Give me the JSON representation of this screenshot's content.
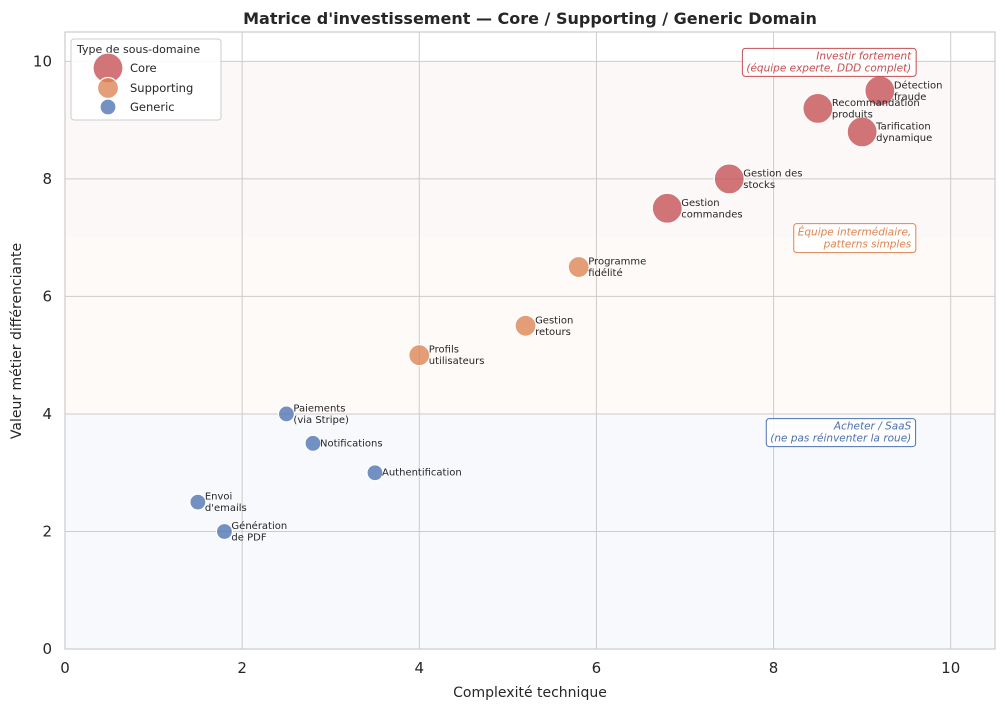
{
  "chart_data": {
    "type": "scatter",
    "title": "Matrice d'investissement — Core / Supporting / Generic Domain",
    "xlabel": "Complexité technique",
    "ylabel": "Valeur métier différenciante",
    "xlim": [
      0,
      10.5
    ],
    "ylim": [
      0,
      10.5
    ],
    "xticks": [
      0,
      2,
      4,
      6,
      8,
      10
    ],
    "yticks": [
      0,
      2,
      4,
      6,
      8,
      10
    ],
    "grid": true,
    "legend": {
      "title": "Type de sous-domaine",
      "placement": "top-left"
    },
    "bands": [
      {
        "y0": 0,
        "y1": 4,
        "color": "#4c72b0"
      },
      {
        "y0": 4,
        "y1": 7,
        "color": "#dd8452"
      },
      {
        "y0": 7,
        "y1": 10,
        "color": "#c44e52"
      }
    ],
    "series": [
      {
        "name": "Core",
        "color": "#c44e52",
        "marker_size": "large",
        "points": [
          {
            "x": 9.2,
            "y": 9.5,
            "label": "Détection\nfraude"
          },
          {
            "x": 8.5,
            "y": 9.2,
            "label": "Recommandation\nproduits"
          },
          {
            "x": 9.0,
            "y": 8.8,
            "label": "Tarification\ndynamique"
          },
          {
            "x": 7.5,
            "y": 8.0,
            "label": "Gestion des\nstocks"
          },
          {
            "x": 6.8,
            "y": 7.5,
            "label": "Gestion\ncommandes"
          }
        ]
      },
      {
        "name": "Supporting",
        "color": "#dd8452",
        "marker_size": "medium",
        "points": [
          {
            "x": 5.8,
            "y": 6.5,
            "label": "Programme\nfidélité"
          },
          {
            "x": 5.2,
            "y": 5.5,
            "label": "Gestion\nretours"
          },
          {
            "x": 4.0,
            "y": 5.0,
            "label": "Profils\nutilisateurs"
          }
        ]
      },
      {
        "name": "Generic",
        "color": "#4c72b0",
        "marker_size": "small",
        "points": [
          {
            "x": 2.5,
            "y": 4.0,
            "label": "Paiements\n(via Stripe)"
          },
          {
            "x": 2.8,
            "y": 3.5,
            "label": "Notifications"
          },
          {
            "x": 3.5,
            "y": 3.0,
            "label": "Authentification"
          },
          {
            "x": 1.5,
            "y": 2.5,
            "label": "Envoi\nd'emails"
          },
          {
            "x": 1.8,
            "y": 2.0,
            "label": "Génération\nde PDF"
          }
        ]
      }
    ],
    "annotations": [
      {
        "text": "Investir fortement\n(équipe experte, DDD complet)",
        "x": 9.6,
        "y": 10.0,
        "color": "#c44e52"
      },
      {
        "text": "Équipe intermédiaire,\npatterns simples",
        "x": 9.6,
        "y": 7.0,
        "color": "#dd8452"
      },
      {
        "text": "Acheter / SaaS\n(ne pas réinventer la roue)",
        "x": 9.6,
        "y": 3.7,
        "color": "#4c72b0"
      }
    ]
  }
}
